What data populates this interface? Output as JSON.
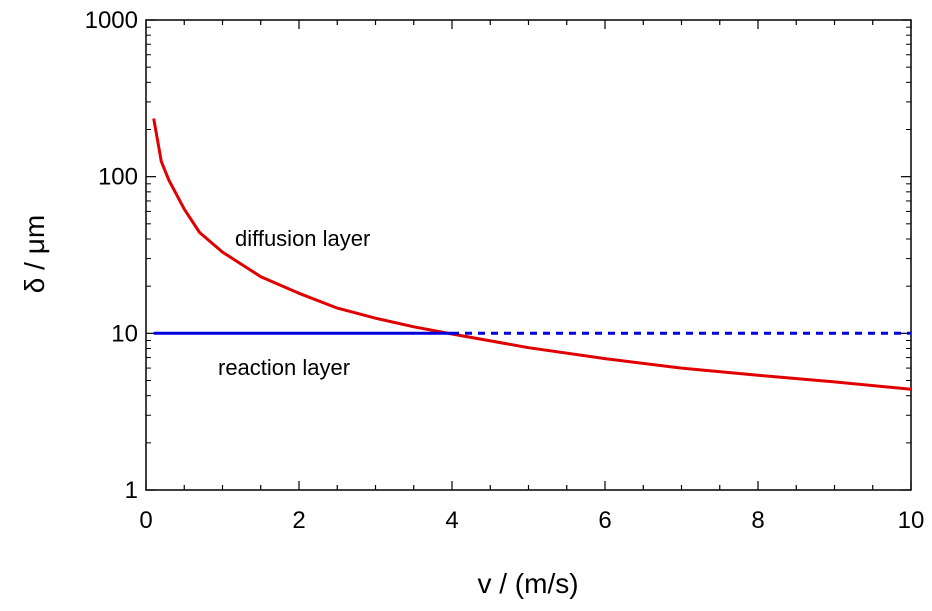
{
  "chart_data": {
    "type": "line",
    "xlabel": "v / (m/s)",
    "ylabel": "δ / μm",
    "xlim": [
      0,
      10
    ],
    "ylim": [
      1,
      1000
    ],
    "y_scale": "log",
    "grid": false,
    "legend": "none",
    "x_ticks": [
      "0",
      "2",
      "4",
      "6",
      "8",
      "10"
    ],
    "y_ticks": [
      "1",
      "10",
      "100",
      "1000"
    ],
    "annotations": {
      "diffusion": "diffusion layer",
      "reaction": "reaction layer"
    },
    "series": [
      {
        "color": "#e00000",
        "style": "solid",
        "x": [
          0.1,
          0.2,
          0.3,
          0.5,
          0.7,
          1.0,
          1.5,
          2.0,
          2.5,
          3.0,
          3.5,
          4.0,
          5.0,
          6.0,
          7.0,
          8.0,
          9.0,
          10.0
        ],
        "y": [
          235,
          125,
          95,
          62,
          44,
          33,
          23,
          18,
          14.5,
          12.5,
          11,
          9.9,
          8.1,
          6.9,
          6.0,
          5.4,
          4.9,
          4.4
        ]
      },
      {
        "color": "#0000dd",
        "style": "solid",
        "x": [
          0.1,
          4.0
        ],
        "y": [
          10,
          10
        ]
      },
      {
        "color": "#0000dd",
        "style": "dotted",
        "x": [
          4.0,
          10.0
        ],
        "y": [
          10,
          10
        ]
      }
    ]
  }
}
